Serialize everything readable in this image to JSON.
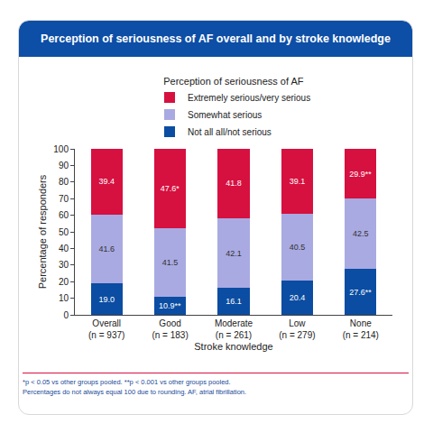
{
  "chart_data": {
    "type": "bar",
    "title": "Perception of seriousness of AF overall and by stroke knowledge",
    "legend_title": "Perception of seriousness of AF",
    "x_label": "Stroke knowledge",
    "y_label": "Percentage of responders",
    "categories": [
      "Overall\n(n = 937)",
      "Good\n(n = 183)",
      "Moderate\n(n = 261)",
      "Low\n(n = 279)",
      "None\n(n = 214)"
    ],
    "series": [
      {
        "name": "Not all all/not serious",
        "color": "#0b4da2",
        "values": [
          19.0,
          10.9,
          16.1,
          20.4,
          27.6
        ],
        "value_labels": [
          "19.0",
          "10.9**",
          "16.1",
          "20.4",
          "27.6**"
        ]
      },
      {
        "name": "Somewhat serious",
        "color": "#a9aae2",
        "values": [
          41.6,
          41.5,
          42.1,
          40.5,
          42.5
        ],
        "value_labels": [
          "41.6",
          "41.5",
          "42.1",
          "40.5",
          "42.5"
        ]
      },
      {
        "name": "Extremely serious/very serious",
        "color": "#d6103f",
        "values": [
          39.4,
          47.6,
          41.8,
          39.1,
          29.9
        ],
        "value_labels": [
          "39.4",
          "47.6*",
          "41.8",
          "39.1",
          "29.9**"
        ]
      }
    ],
    "ylim": [
      0,
      100
    ],
    "yticks": [
      0,
      10,
      20,
      30,
      40,
      50,
      60,
      70,
      80,
      90,
      100
    ],
    "stacked": true,
    "data_labels": true,
    "grid": false,
    "legend": "top",
    "annotations": [
      "*p < 0.05 vs other groups pooled. **p < 0.001 vs other groups pooled.",
      "Percentages do not always equal 100 due to rounding. AF, atrial fibrillation."
    ]
  }
}
